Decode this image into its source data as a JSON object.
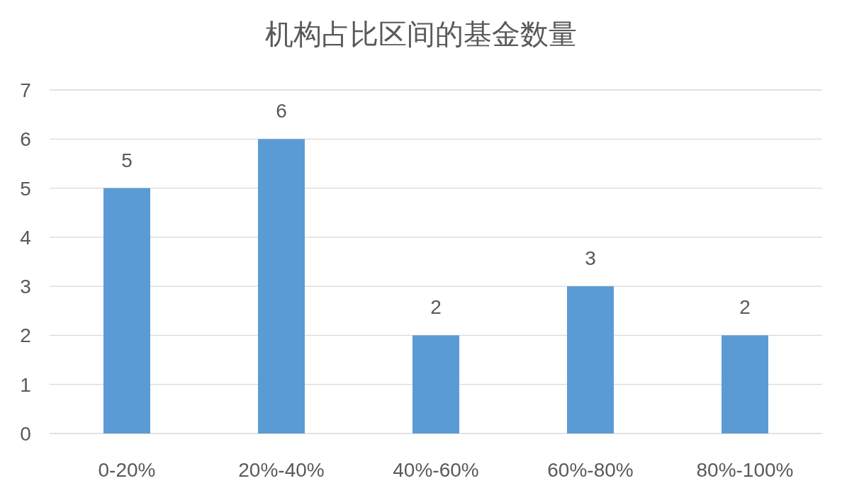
{
  "chart_data": {
    "type": "bar",
    "title": "机构占比区间的基金数量",
    "categories": [
      "0-20%",
      "20%-40%",
      "40%-60%",
      "60%-80%",
      "80%-100%"
    ],
    "values": [
      5,
      6,
      2,
      3,
      2
    ],
    "color": "#5b9bd5",
    "ylim": [
      0,
      7
    ],
    "yticks": [
      0,
      1,
      2,
      3,
      4,
      5,
      6,
      7
    ],
    "grid": "y",
    "data_labels": true
  }
}
